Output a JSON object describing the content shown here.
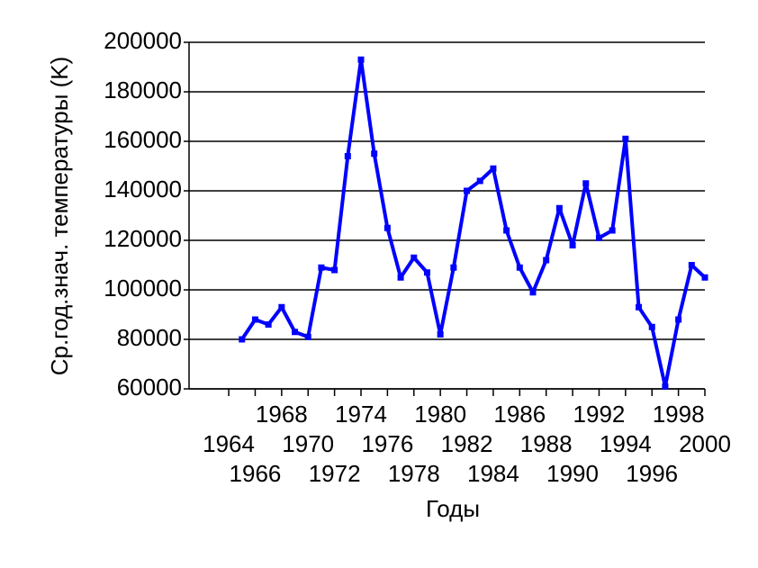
{
  "chart_data": {
    "type": "line",
    "y_label": "Ср.год.знач. температуры (K)",
    "x_label": "Годы",
    "x": [
      1965,
      1966,
      1967,
      1968,
      1969,
      1970,
      1971,
      1972,
      1973,
      1974,
      1975,
      1976,
      1977,
      1978,
      1979,
      1980,
      1981,
      1982,
      1983,
      1984,
      1985,
      1986,
      1987,
      1988,
      1989,
      1990,
      1991,
      1992,
      1993,
      1994,
      1995,
      1996,
      1997,
      1998,
      1999,
      2000
    ],
    "series": [
      {
        "color": "#0000ff",
        "values": [
          80000,
          88000,
          86000,
          93000,
          83000,
          81000,
          109000,
          108000,
          154000,
          193000,
          155000,
          125000,
          105000,
          113000,
          107000,
          82000,
          109000,
          140000,
          144000,
          149000,
          124000,
          109000,
          99000,
          112000,
          133000,
          118000,
          143000,
          121000,
          124000,
          161000,
          93000,
          85000,
          61000,
          88000,
          110000,
          105000
        ]
      }
    ],
    "xlim": [
      1961,
      2000
    ],
    "xticks": [
      1964,
      1966,
      1968,
      1970,
      1972,
      1974,
      1976,
      1978,
      1980,
      1982,
      1984,
      1986,
      1988,
      1990,
      1992,
      1994,
      1996,
      1998,
      2000
    ],
    "ylim": [
      60000,
      200000
    ],
    "yticks": [
      60000,
      80000,
      100000,
      120000,
      140000,
      160000,
      180000,
      200000
    ],
    "grid": true
  }
}
